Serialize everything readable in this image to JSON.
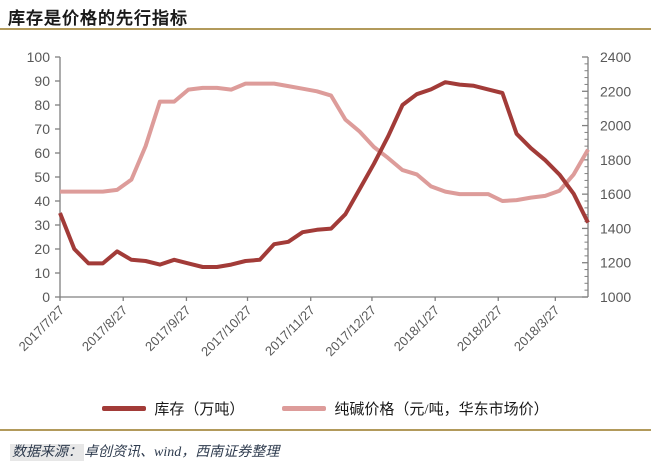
{
  "header": {
    "title": "库存是价格的先行指标"
  },
  "chart_data": {
    "type": "line",
    "title": "库存是价格的先行指标",
    "grid": false,
    "legend_position": "bottom",
    "x_ticks": [
      {
        "label": "2017/7/27",
        "week": 0
      },
      {
        "label": "2017/8/27",
        "week": 4.43
      },
      {
        "label": "2017/9/27",
        "week": 8.86
      },
      {
        "label": "2017/10/27",
        "week": 13.14
      },
      {
        "label": "2017/11/27",
        "week": 17.57
      },
      {
        "label": "2017/12/27",
        "week": 21.86
      },
      {
        "label": "2018/1/27",
        "week": 26.29
      },
      {
        "label": "2018/2/27",
        "week": 30.71
      },
      {
        "label": "2018/3/27",
        "week": 34.71
      }
    ],
    "x_total_weeks": 37,
    "y_left": {
      "range": [
        0,
        100
      ],
      "tick_labels": [
        "100",
        "90",
        "80",
        "70",
        "60",
        "50",
        "40",
        "30",
        "20",
        "10",
        "0"
      ]
    },
    "y_right": {
      "range": [
        1000,
        2400
      ],
      "tick_labels": [
        "2400",
        "2200",
        "2000",
        "1800",
        "1600",
        "1400",
        "1200",
        "1000"
      ],
      "minor_step": 40
    },
    "series": [
      {
        "name": "库存（万吨）",
        "axis": "left",
        "color": "#a23b38",
        "values": [
          35,
          20,
          14,
          14,
          19,
          15.5,
          15,
          13.5,
          15.5,
          14,
          12.5,
          12.5,
          13.5,
          15,
          15.5,
          22,
          23,
          27,
          28,
          28.5,
          34.5,
          45,
          55.5,
          67,
          80,
          84.5,
          86.5,
          89.5,
          88.5,
          88,
          86.5,
          85,
          68,
          62,
          57,
          51,
          43,
          31
        ]
      },
      {
        "name": "纯碱价格（元/吨，华东市场价）",
        "axis": "right",
        "color": "#dd9c9a",
        "values": [
          1615,
          1615,
          1615,
          1615,
          1625,
          1685,
          1880,
          2140,
          2140,
          2210,
          2220,
          2220,
          2210,
          2245,
          2245,
          2245,
          2230,
          2215,
          2200,
          2175,
          2035,
          1965,
          1875,
          1810,
          1740,
          1715,
          1645,
          1615,
          1600,
          1600,
          1600,
          1560,
          1565,
          1580,
          1590,
          1620,
          1715,
          1860
        ]
      }
    ]
  },
  "footer": {
    "source_prefix": "数据来源：",
    "source_text": "卓创资讯、wind，西南证券整理"
  },
  "colors": {
    "inventory": "#a23b38",
    "price": "#dd9c9a",
    "gold": "#b29a5b",
    "axis_line": "#808080",
    "tick_text": "#595959",
    "source_text": "#2e3b4e",
    "source_highlight": "#e7e7e7"
  }
}
